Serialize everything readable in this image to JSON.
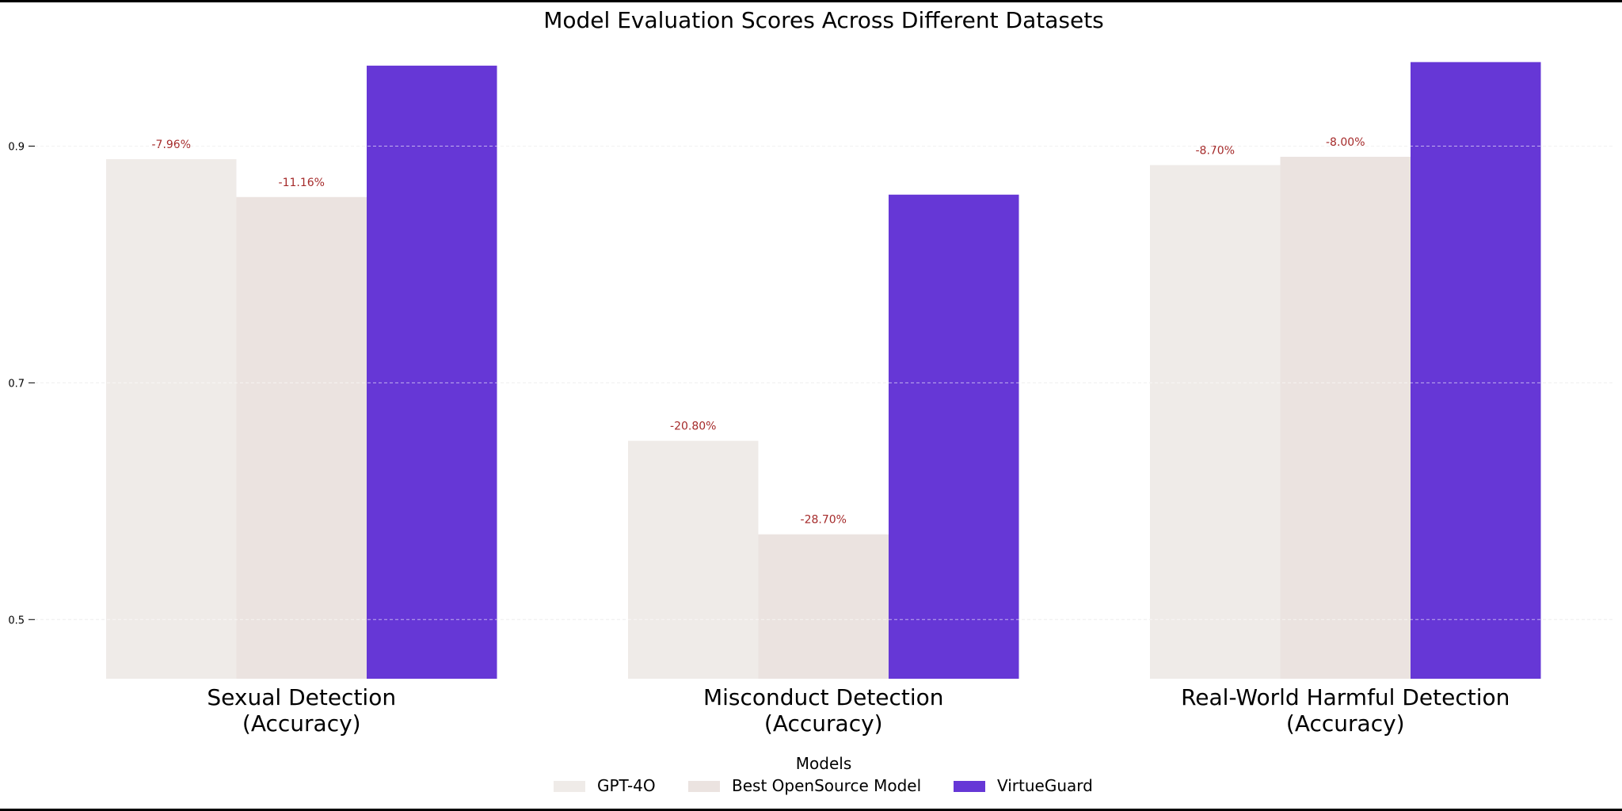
{
  "chart_data": {
    "type": "bar",
    "title": "Model Evaluation Scores Across Different Datasets",
    "xlabel": "",
    "ylabel": "",
    "ylim": [
      0.45,
      0.99
    ],
    "yticks": [
      0.5,
      0.7,
      0.9
    ],
    "ytick_labels": [
      "0.5",
      "0.7",
      "0.9"
    ],
    "grid": "horizontal dashed",
    "categories": [
      [
        "Sexual Detection",
        "(Accuracy)"
      ],
      [
        "Misconduct Detection",
        "(Accuracy)"
      ],
      [
        "Real-World Harmful Detection",
        "(Accuracy)"
      ]
    ],
    "series": [
      {
        "name": "GPT-4O",
        "color": "#efebe8",
        "values": [
          0.889,
          0.651,
          0.884
        ],
        "labels": [
          "-7.96%",
          "-20.80%",
          "-8.70%"
        ]
      },
      {
        "name": "Best OpenSource Model",
        "color": "#ebe3e0",
        "values": [
          0.857,
          0.572,
          0.891
        ],
        "labels": [
          "-11.16%",
          "-28.70%",
          "-8.00%"
        ]
      },
      {
        "name": "VirtueGuard",
        "color": "#6637d6",
        "values": [
          0.968,
          0.859,
          0.971
        ],
        "labels": [
          "",
          "",
          ""
        ]
      }
    ],
    "annotation_color": "#a52a2a",
    "legend": {
      "title": "Models",
      "placement": "bottom-center"
    }
  }
}
